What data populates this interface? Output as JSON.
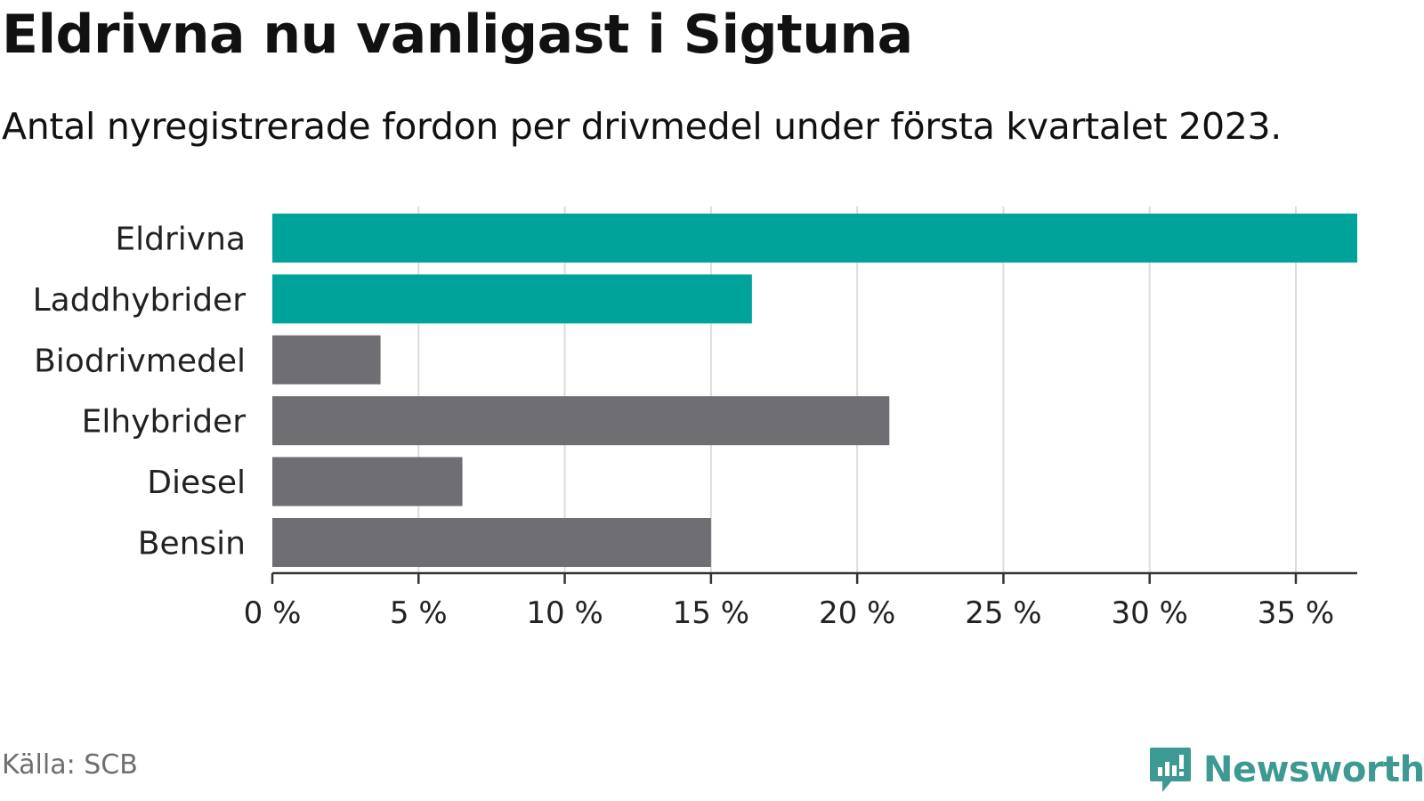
{
  "title": "Eldrivna nu vanligast i Sigtuna",
  "subtitle": "Antal nyregistrerade fordon per drivmedel under första kvartalet 2023.",
  "source": "Källa: SCB",
  "brand": "Newsworthy",
  "colors": {
    "accent": "#00a39a",
    "neutral": "#6e6e73",
    "brand": "#3d9a92",
    "grid": "#dcdcdc",
    "axis": "#333333"
  },
  "chart_data": {
    "type": "bar",
    "orientation": "horizontal",
    "categories": [
      "Eldrivna",
      "Laddhybrider",
      "Biodrivmedel",
      "Elhybrider",
      "Diesel",
      "Bensin"
    ],
    "values": [
      37.1,
      16.4,
      3.7,
      21.1,
      6.5,
      15.0
    ],
    "highlight": [
      true,
      true,
      false,
      false,
      false,
      false
    ],
    "xlim": [
      0,
      37.1
    ],
    "xticks": [
      0,
      5,
      10,
      15,
      20,
      25,
      30,
      35
    ],
    "xtick_labels": [
      "0 %",
      "5 %",
      "10 %",
      "15 %",
      "20 %",
      "25 %",
      "30 %",
      "35 %"
    ],
    "title": "Eldrivna nu vanligast i Sigtuna",
    "xlabel": "",
    "ylabel": "",
    "grid": true,
    "legend": "none"
  }
}
